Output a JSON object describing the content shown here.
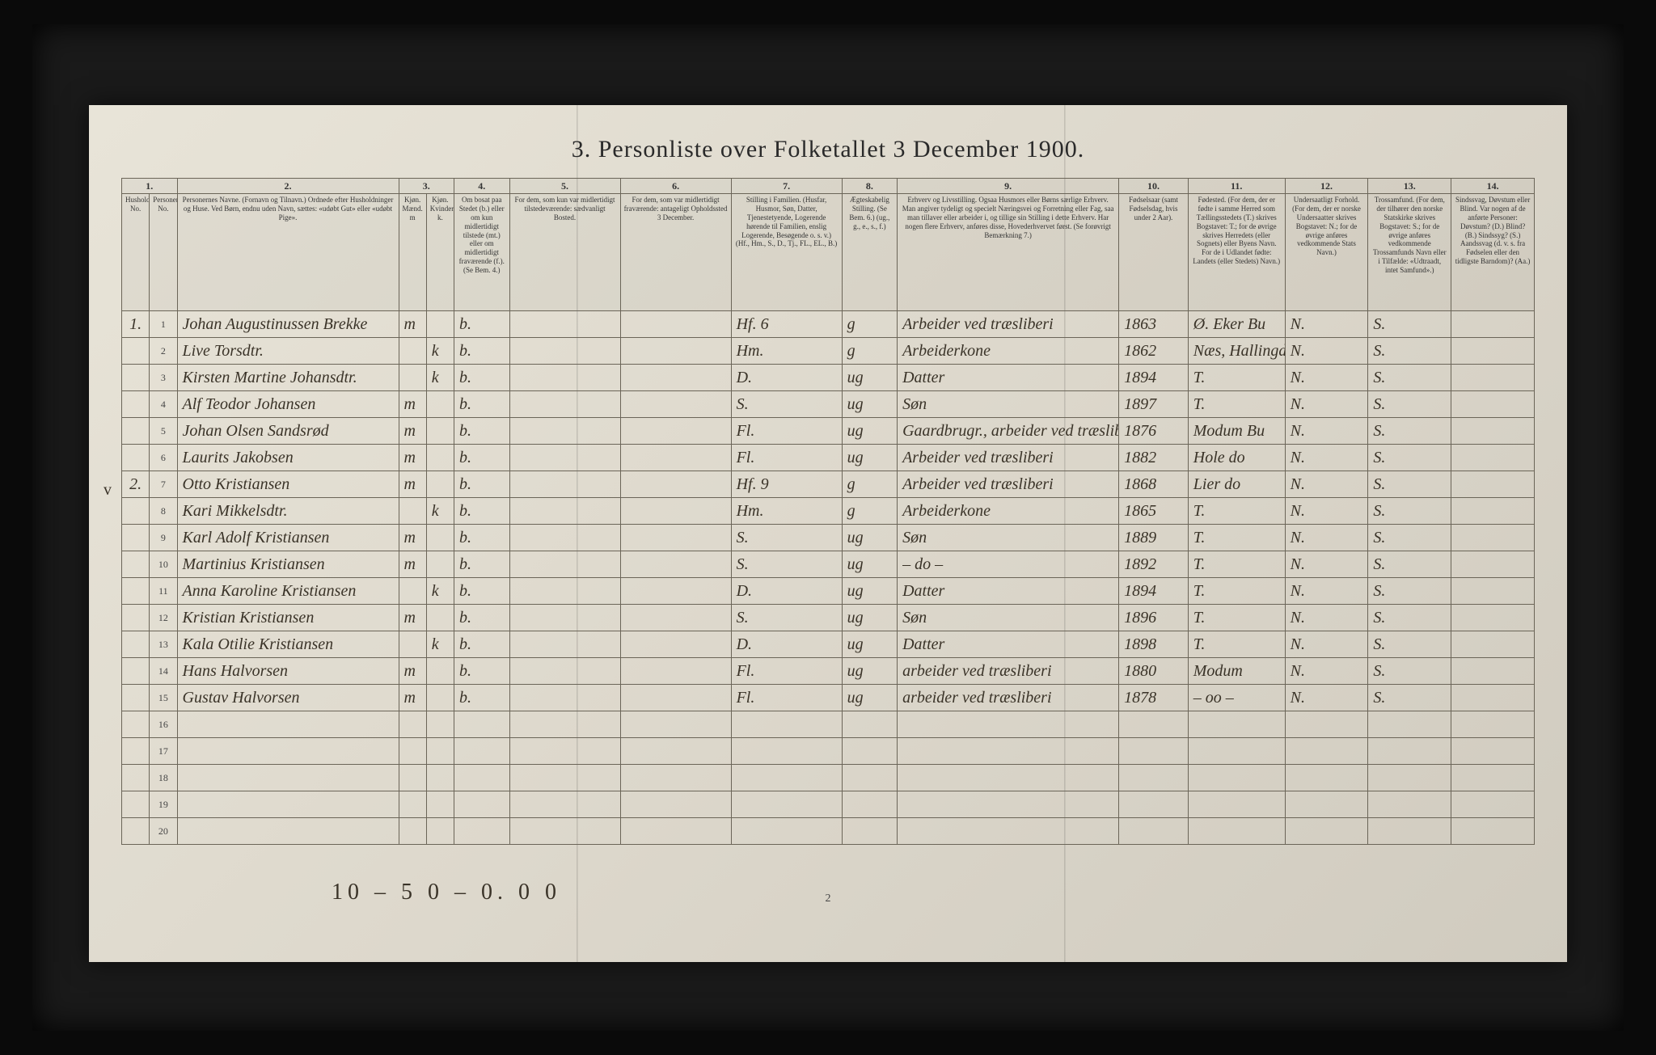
{
  "title": "3.  Personliste over Folketallet 3 December 1900.",
  "page_number": "2",
  "footer_tally": "10 – 5    0 – 0.    0   0",
  "margin_mark": "v",
  "colors": {
    "paper_bg": "#e0dbce",
    "ink": "#3a3328",
    "rule": "#6b6558",
    "frame_bg": "#0a0a0a"
  },
  "columns": {
    "numbers": [
      "1.",
      "2.",
      "3.",
      "4.",
      "5.",
      "6.",
      "7.",
      "8.",
      "9.",
      "10.",
      "11.",
      "12.",
      "13.",
      "14."
    ],
    "widths_pct": [
      2,
      2,
      16,
      2,
      2,
      4,
      8,
      8,
      8,
      4,
      16,
      5,
      7,
      6,
      6,
      6
    ],
    "headers": [
      "Husholdningernes No.",
      "Personernes No.",
      "Personernes Navne. (Fornavn og Tilnavn.) Ordnede efter Husholdninger og Huse. Ved Børn, endnu uden Navn, sættes: «udøbt Gut» eller «udøbt Pige».",
      "Kjøn. Mænd. m",
      "Kjøn. Kvinder. k.",
      "Om bosat paa Stedet (b.) eller om kun midlertidigt tilstede (mt.) eller om midlertidigt fraværende (f.). (Se Bem. 4.)",
      "For dem, som kun var midlertidigt tilstedeværende: sædvanligt Bosted.",
      "For dem, som var midlertidigt fraværende: antageligt Opholdssted 3 December.",
      "Stilling i Familien. (Husfar, Husmor, Søn, Datter, Tjenestetyende, Logerende hørende til Familien, enslig Logerende, Besøgende o. s. v.) (Hf., Hm., S., D., Tj., FL., EL., B.)",
      "Ægteskabelig Stilling. (Se Bem. 6.) (ug., g., e., s., f.)",
      "Erhverv og Livsstilling. Ogsaa Husmors eller Børns særlige Erhverv. Man angiver tydeligt og specielt Næringsvei og Forretning eller Fag, saa man tillaver eller arbeider i, og tillige sin Stilling i dette Erhverv. Har nogen flere Erhverv, anføres disse, Hovederhvervet først. (Se forøvrigt Bemærkning 7.)",
      "Fødselsaar (samt Fødselsdag, hvis under 2 Aar).",
      "Fødested. (For dem, der er fødte i samme Herred som Tællingsstedets (T.) skrives Bogstavet: T.; for de øvrige skrives Herredets (eller Sognets) eller Byens Navn. For de i Udlandet fødte: Landets (eller Stedets) Navn.)",
      "Undersaatligt Forhold. (For dem, der er norske Undersaatter skrives Bogstavet: N.; for de øvrige anføres vedkommende Stats Navn.)",
      "Trossamfund. (For dem, der tilhører den norske Statskirke skrives Bogstavet: S.; for de øvrige anføres vedkommende Trossamfunds Navn eller i Tilfælde: «Udtraadt, intet Samfund».)",
      "Sindssvag, Døvstum eller Blind. Var nogen af de anførte Personer: Døvstum? (D.) Blind? (B.) Sindssyg? (S.) Aandssvag (d. v. s. fra Fødselen eller den tidligste Barndom)? (Aa.)"
    ]
  },
  "rows": [
    {
      "hh": "1.",
      "pn": "1",
      "name": "Johan Augustinussen Brekke",
      "m": "m",
      "k": "",
      "res": "b.",
      "temp": "",
      "away": "",
      "pos": "Hf.  6",
      "civ": "g",
      "occ": "Arbeider ved træsliberi",
      "year": "1863",
      "birthplace": "Ø. Eker   Bu",
      "nat": "N.",
      "rel": "S.",
      "dis": ""
    },
    {
      "hh": "",
      "pn": "2",
      "name": "Live Torsdtr.",
      "m": "",
      "k": "k",
      "res": "b.",
      "temp": "",
      "away": "",
      "pos": "Hm.",
      "civ": "g",
      "occ": "Arbeiderkone",
      "year": "1862",
      "birthplace": "Næs, Hallingdal",
      "nat": "N.",
      "rel": "S.",
      "dis": ""
    },
    {
      "hh": "",
      "pn": "3",
      "name": "Kirsten Martine Johansdtr.",
      "m": "",
      "k": "k",
      "res": "b.",
      "temp": "",
      "away": "",
      "pos": "D.",
      "civ": "ug",
      "occ": "Datter",
      "year": "1894",
      "birthplace": "T.",
      "nat": "N.",
      "rel": "S.",
      "dis": ""
    },
    {
      "hh": "",
      "pn": "4",
      "name": "Alf Teodor Johansen",
      "m": "m",
      "k": "",
      "res": "b.",
      "temp": "",
      "away": "",
      "pos": "S.",
      "civ": "ug",
      "occ": "Søn",
      "year": "1897",
      "birthplace": "T.",
      "nat": "N.",
      "rel": "S.",
      "dis": ""
    },
    {
      "hh": "",
      "pn": "5",
      "name": "Johan Olsen Sandsrød",
      "m": "m",
      "k": "",
      "res": "b.",
      "temp": "",
      "away": "",
      "pos": "Fl.",
      "civ": "ug",
      "occ": "Gaardbrugr., arbeider ved træsliberi",
      "year": "1876",
      "birthplace": "Modum   Bu",
      "nat": "N.",
      "rel": "S.",
      "dis": ""
    },
    {
      "hh": "",
      "pn": "6",
      "name": "Laurits Jakobsen",
      "m": "m",
      "k": "",
      "res": "b.",
      "temp": "",
      "away": "",
      "pos": "Fl.",
      "civ": "ug",
      "occ": "Arbeider ved træsliberi",
      "year": "1882",
      "birthplace": "Hole   do",
      "nat": "N.",
      "rel": "S.",
      "dis": ""
    },
    {
      "hh": "2.",
      "pn": "7",
      "name": "Otto Kristiansen",
      "m": "m",
      "k": "",
      "res": "b.",
      "temp": "",
      "away": "",
      "pos": "Hf.   9",
      "civ": "g",
      "occ": "Arbeider ved træsliberi",
      "year": "1868",
      "birthplace": "Lier   do",
      "nat": "N.",
      "rel": "S.",
      "dis": ""
    },
    {
      "hh": "",
      "pn": "8",
      "name": "Kari Mikkelsdtr.",
      "m": "",
      "k": "k",
      "res": "b.",
      "temp": "",
      "away": "",
      "pos": "Hm.",
      "civ": "g",
      "occ": "Arbeiderkone",
      "year": "1865",
      "birthplace": "T.",
      "nat": "N.",
      "rel": "S.",
      "dis": ""
    },
    {
      "hh": "",
      "pn": "9",
      "name": "Karl Adolf Kristiansen",
      "m": "m",
      "k": "",
      "res": "b.",
      "temp": "",
      "away": "",
      "pos": "S.",
      "civ": "ug",
      "occ": "Søn",
      "year": "1889",
      "birthplace": "T.",
      "nat": "N.",
      "rel": "S.",
      "dis": ""
    },
    {
      "hh": "",
      "pn": "10",
      "name": "Martinius Kristiansen",
      "m": "m",
      "k": "",
      "res": "b.",
      "temp": "",
      "away": "",
      "pos": "S.",
      "civ": "ug",
      "occ": "– do –",
      "year": "1892",
      "birthplace": "T.",
      "nat": "N.",
      "rel": "S.",
      "dis": ""
    },
    {
      "hh": "",
      "pn": "11",
      "name": "Anna Karoline Kristiansen",
      "m": "",
      "k": "k",
      "res": "b.",
      "temp": "",
      "away": "",
      "pos": "D.",
      "civ": "ug",
      "occ": "Datter",
      "year": "1894",
      "birthplace": "T.",
      "nat": "N.",
      "rel": "S.",
      "dis": ""
    },
    {
      "hh": "",
      "pn": "12",
      "name": "Kristian Kristiansen",
      "m": "m",
      "k": "",
      "res": "b.",
      "temp": "",
      "away": "",
      "pos": "S.",
      "civ": "ug",
      "occ": "Søn",
      "year": "1896",
      "birthplace": "T.",
      "nat": "N.",
      "rel": "S.",
      "dis": ""
    },
    {
      "hh": "",
      "pn": "13",
      "name": "Kala Otilie Kristiansen",
      "m": "",
      "k": "k",
      "res": "b.",
      "temp": "",
      "away": "",
      "pos": "D.",
      "civ": "ug",
      "occ": "Datter",
      "year": "1898",
      "birthplace": "T.",
      "nat": "N.",
      "rel": "S.",
      "dis": ""
    },
    {
      "hh": "",
      "pn": "14",
      "name": "Hans Halvorsen",
      "m": "m",
      "k": "",
      "res": "b.",
      "temp": "",
      "away": "",
      "pos": "Fl.",
      "civ": "ug",
      "occ": "arbeider ved træsliberi",
      "year": "1880",
      "birthplace": "Modum",
      "nat": "N.",
      "rel": "S.",
      "dis": ""
    },
    {
      "hh": "",
      "pn": "15",
      "name": "Gustav Halvorsen",
      "m": "m",
      "k": "",
      "res": "b.",
      "temp": "",
      "away": "",
      "pos": "Fl.",
      "civ": "ug",
      "occ": "arbeider ved træsliberi",
      "year": "1878",
      "birthplace": "– oo –",
      "nat": "N.",
      "rel": "S.",
      "dis": ""
    },
    {
      "hh": "",
      "pn": "16",
      "name": "",
      "m": "",
      "k": "",
      "res": "",
      "temp": "",
      "away": "",
      "pos": "",
      "civ": "",
      "occ": "",
      "year": "",
      "birthplace": "",
      "nat": "",
      "rel": "",
      "dis": ""
    },
    {
      "hh": "",
      "pn": "17",
      "name": "",
      "m": "",
      "k": "",
      "res": "",
      "temp": "",
      "away": "",
      "pos": "",
      "civ": "",
      "occ": "",
      "year": "",
      "birthplace": "",
      "nat": "",
      "rel": "",
      "dis": ""
    },
    {
      "hh": "",
      "pn": "18",
      "name": "",
      "m": "",
      "k": "",
      "res": "",
      "temp": "",
      "away": "",
      "pos": "",
      "civ": "",
      "occ": "",
      "year": "",
      "birthplace": "",
      "nat": "",
      "rel": "",
      "dis": ""
    },
    {
      "hh": "",
      "pn": "19",
      "name": "",
      "m": "",
      "k": "",
      "res": "",
      "temp": "",
      "away": "",
      "pos": "",
      "civ": "",
      "occ": "",
      "year": "",
      "birthplace": "",
      "nat": "",
      "rel": "",
      "dis": ""
    },
    {
      "hh": "",
      "pn": "20",
      "name": "",
      "m": "",
      "k": "",
      "res": "",
      "temp": "",
      "away": "",
      "pos": "",
      "civ": "",
      "occ": "",
      "year": "",
      "birthplace": "",
      "nat": "",
      "rel": "",
      "dis": ""
    }
  ]
}
